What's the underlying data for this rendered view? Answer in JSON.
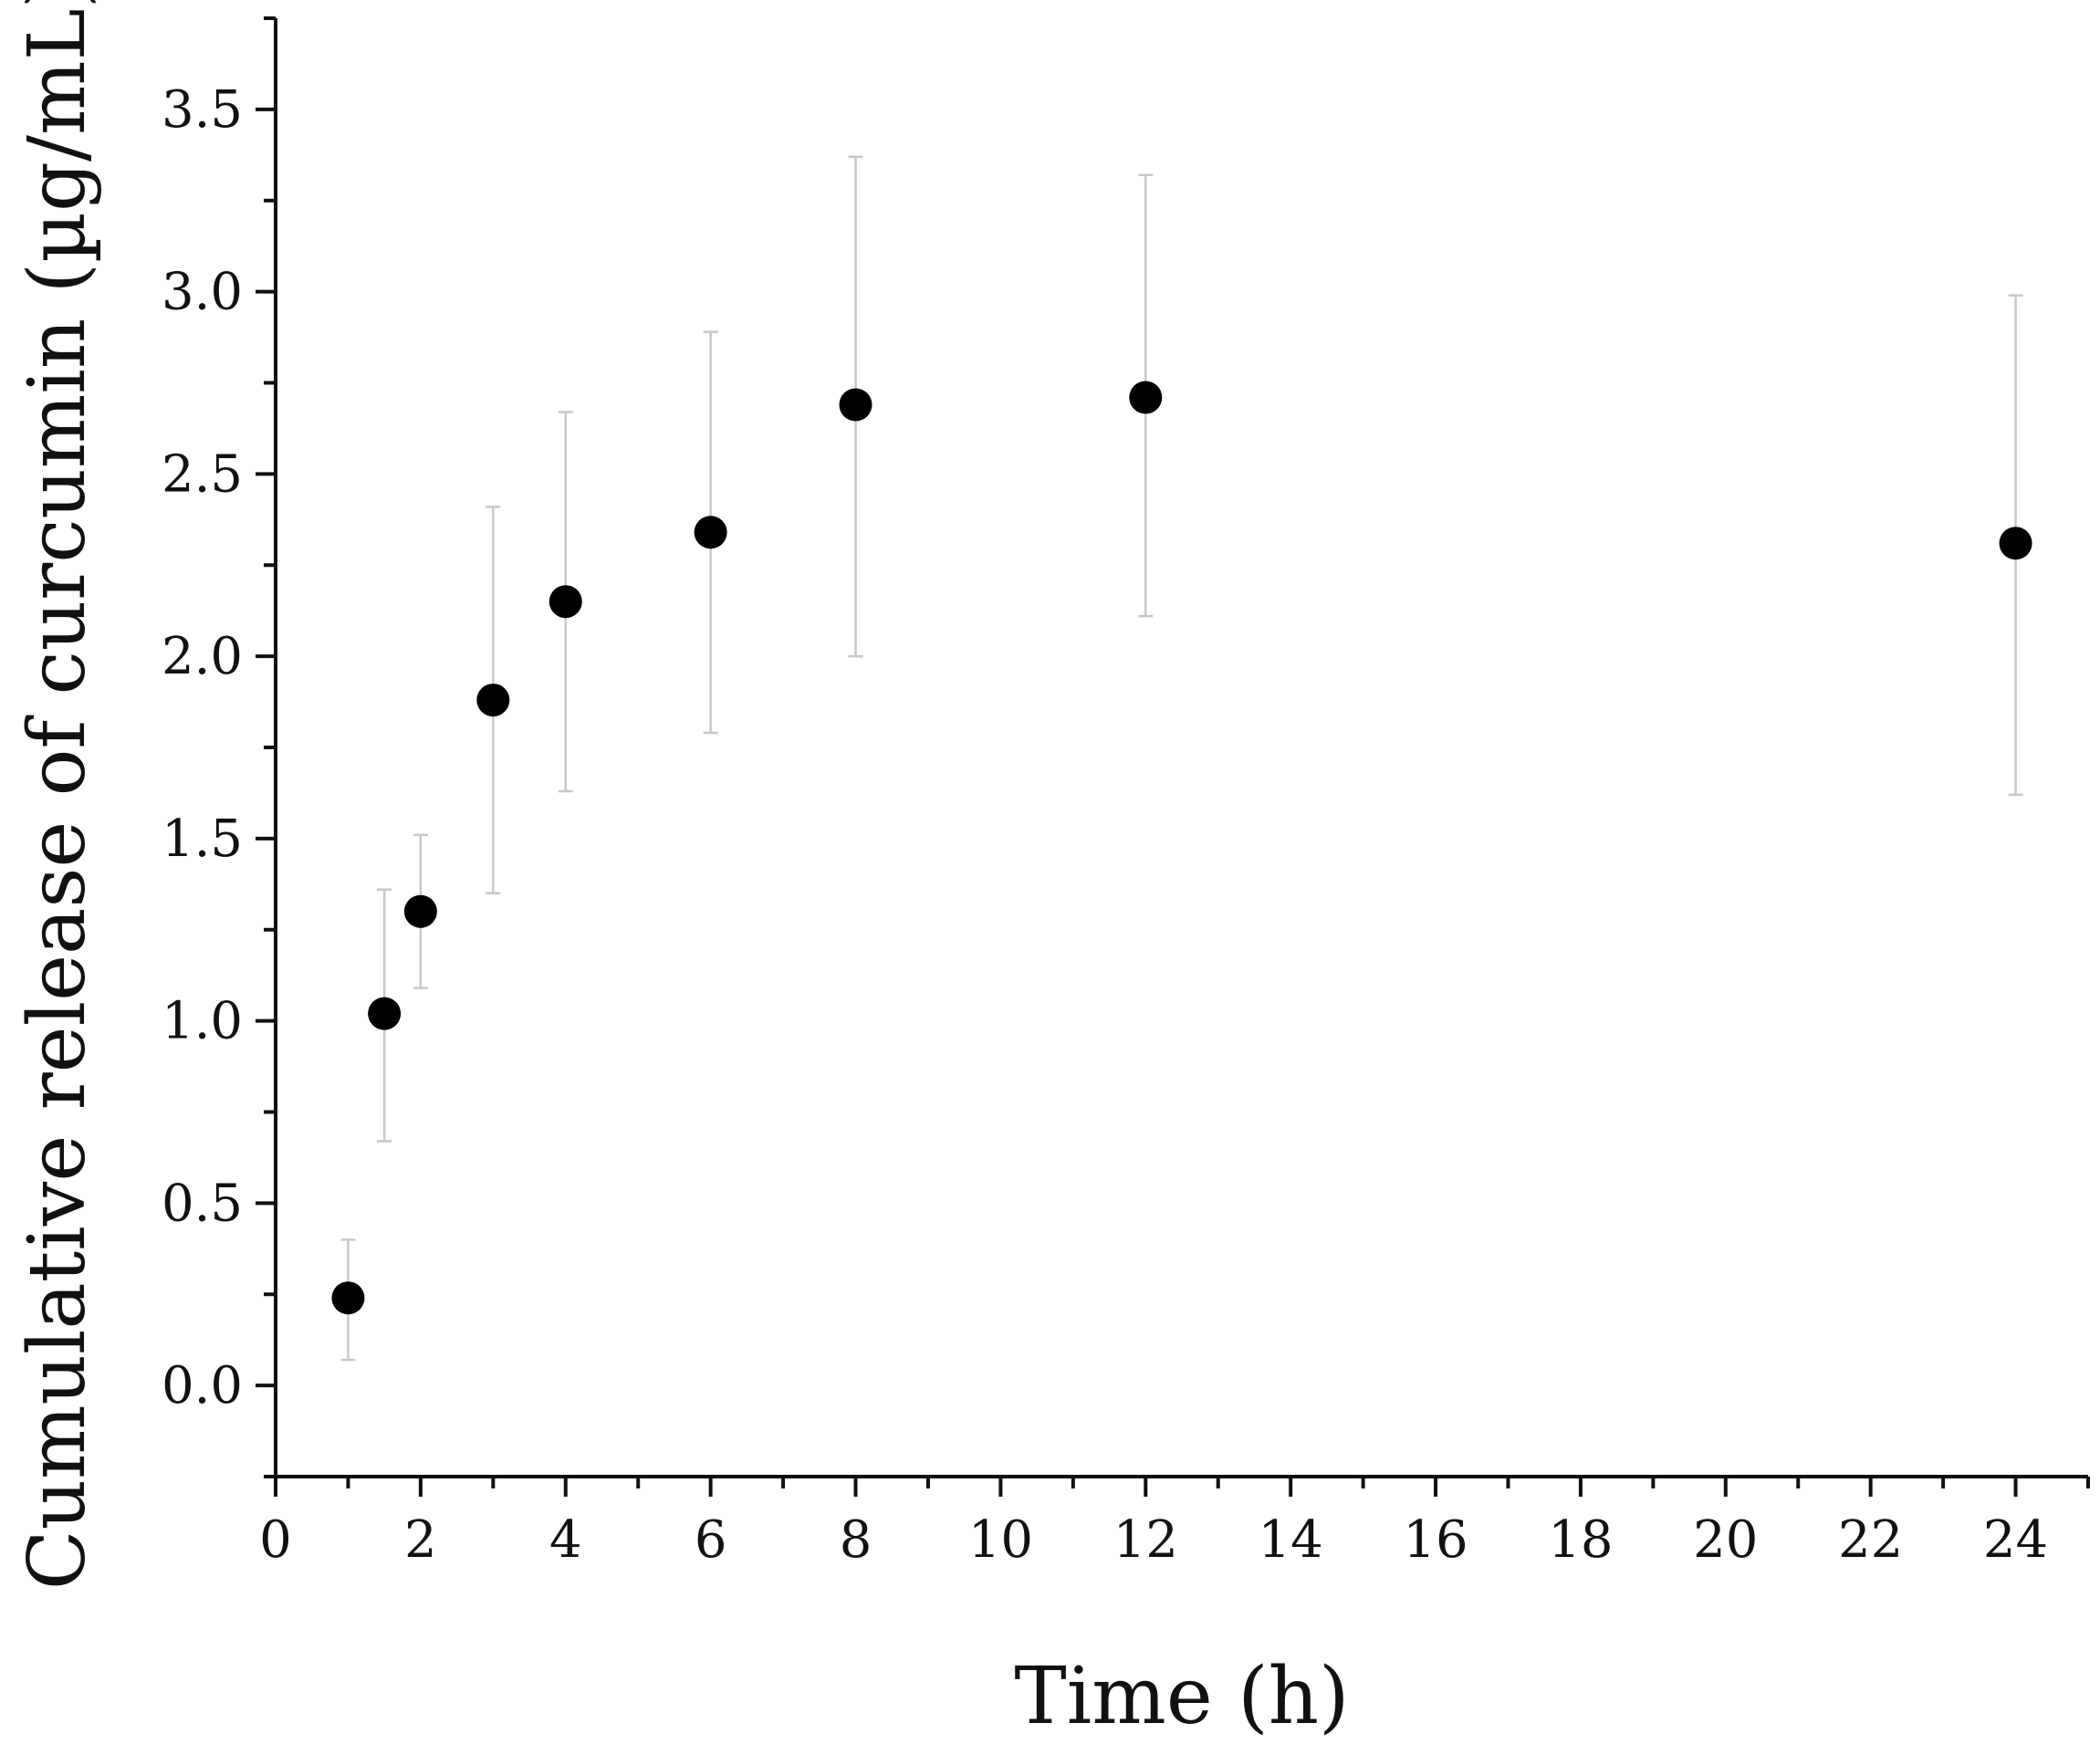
{
  "chart_data": {
    "type": "scatter",
    "xlabel": "Time (h)",
    "ylabel": "Cumulative release of curcumin (µg/mL)",
    "xlim": [
      0,
      25
    ],
    "ylim": [
      -0.25,
      3.75
    ],
    "x_ticks": [
      0,
      2,
      4,
      6,
      8,
      10,
      12,
      14,
      16,
      18,
      20,
      22,
      24
    ],
    "x_tick_labels": [
      "0",
      "2",
      "4",
      "6",
      "8",
      "10",
      "12",
      "14",
      "16",
      "18",
      "20",
      "22",
      "24"
    ],
    "y_ticks": [
      0.0,
      0.5,
      1.0,
      1.5,
      2.0,
      2.5,
      3.0,
      3.5
    ],
    "y_tick_labels": [
      "0.0",
      "0.5",
      "1.0",
      "1.5",
      "2.0",
      "2.5",
      "3.0",
      "3.5"
    ],
    "grid": false,
    "series": [
      {
        "marker_color": "#000000",
        "error_bar_color": "#c8c8c8",
        "points": [
          {
            "x": 1,
            "y": 0.24,
            "err_low": 0.07,
            "err_high": 0.4
          },
          {
            "x": 1.5,
            "y": 1.02,
            "err_low": 0.67,
            "err_high": 1.36
          },
          {
            "x": 2,
            "y": 1.3,
            "err_low": 1.09,
            "err_high": 1.51
          },
          {
            "x": 3,
            "y": 1.88,
            "err_low": 1.35,
            "err_high": 2.41
          },
          {
            "x": 4,
            "y": 2.15,
            "err_low": 1.63,
            "err_high": 2.67
          },
          {
            "x": 6,
            "y": 2.34,
            "err_low": 1.79,
            "err_high": 2.89
          },
          {
            "x": 8,
            "y": 2.69,
            "err_low": 2.0,
            "err_high": 3.37
          },
          {
            "x": 12,
            "y": 2.71,
            "err_low": 2.11,
            "err_high": 3.32
          },
          {
            "x": 24,
            "y": 2.31,
            "err_low": 1.62,
            "err_high": 2.99
          }
        ]
      }
    ]
  }
}
